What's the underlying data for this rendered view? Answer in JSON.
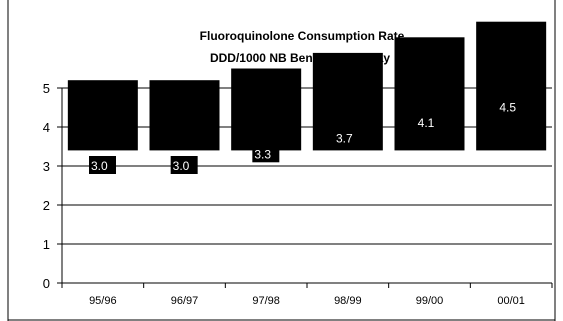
{
  "chart_data": {
    "type": "bar",
    "title_lines": [
      "Fluoroquinolone Consumption Rate",
      "DDD/1000 NB Beneficiaries/Day"
    ],
    "xlabel": "",
    "ylabel": "",
    "categories": [
      "95/96",
      "96/97",
      "97/98",
      "98/99",
      "99/00",
      "00/01"
    ],
    "values": [
      3.0,
      3.0,
      3.3,
      3.7,
      4.1,
      4.5
    ],
    "value_labels": [
      "3.0",
      "3.0",
      "3.3",
      "3.7",
      "4.1",
      "4.5"
    ],
    "y_ticks": [
      "0",
      "1",
      "2",
      "3",
      "4",
      "5"
    ],
    "ylim": [
      0,
      5
    ],
    "grid": true,
    "legend": "none",
    "bar_color": "#000000",
    "label_box_color": "#000000",
    "label_text_color": "#ffffff"
  }
}
